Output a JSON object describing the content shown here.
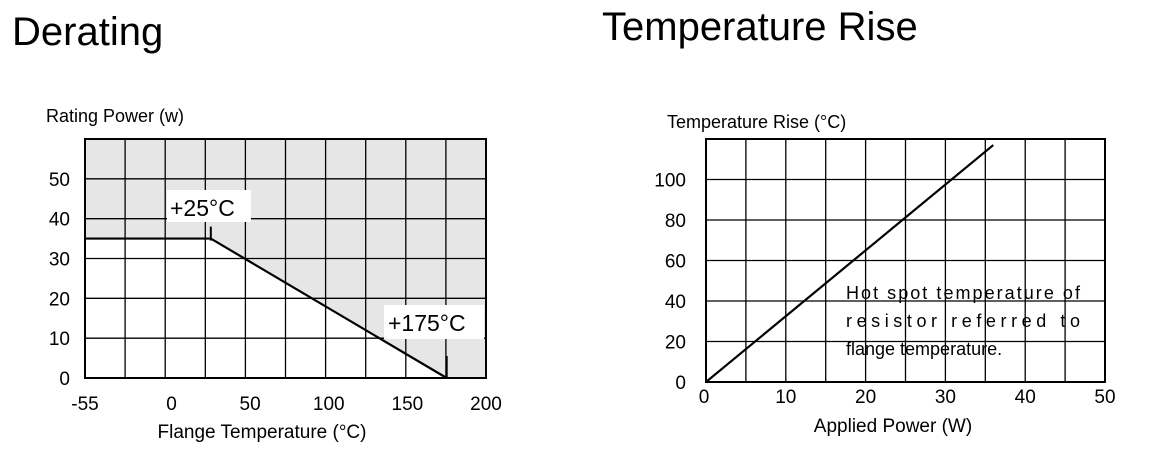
{
  "chart_data": [
    {
      "type": "line",
      "title": "Derating",
      "ylabel": "Rating Power (w)",
      "xlabel": "Flange Temperature (°C)",
      "x_ticks": [
        "-55",
        "0",
        "50",
        "100",
        "150",
        "200"
      ],
      "y_ticks": [
        "0",
        "10",
        "20",
        "30",
        "40",
        "50"
      ],
      "xlim": [
        -55,
        200
      ],
      "ylim": [
        0,
        60
      ],
      "grid": true,
      "shaded_region": "above curve",
      "shade_color": "#e6e6e6",
      "series": [
        {
          "x": [
            -55,
            25,
            175
          ],
          "y": [
            35,
            35,
            0
          ]
        }
      ],
      "annotations": [
        {
          "text": "+25°C",
          "x": 25,
          "y": 35
        },
        {
          "text": "+175°C",
          "x": 175,
          "y": 0
        }
      ]
    },
    {
      "type": "line",
      "title": "Temperature Rise",
      "ylabel": "Temperature Rise (°C)",
      "xlabel": "Applied Power (W)",
      "x_ticks": [
        "0",
        "10",
        "20",
        "30",
        "40",
        "50"
      ],
      "y_ticks": [
        "0",
        "20",
        "40",
        "60",
        "80",
        "100"
      ],
      "xlim": [
        0,
        50
      ],
      "ylim": [
        0,
        120
      ],
      "grid": true,
      "series": [
        {
          "x": [
            0,
            36
          ],
          "y": [
            0,
            117
          ]
        }
      ],
      "note_lines": [
        "Hot spot temperature of",
        "resistor referred to",
        "flange temperature."
      ]
    }
  ]
}
